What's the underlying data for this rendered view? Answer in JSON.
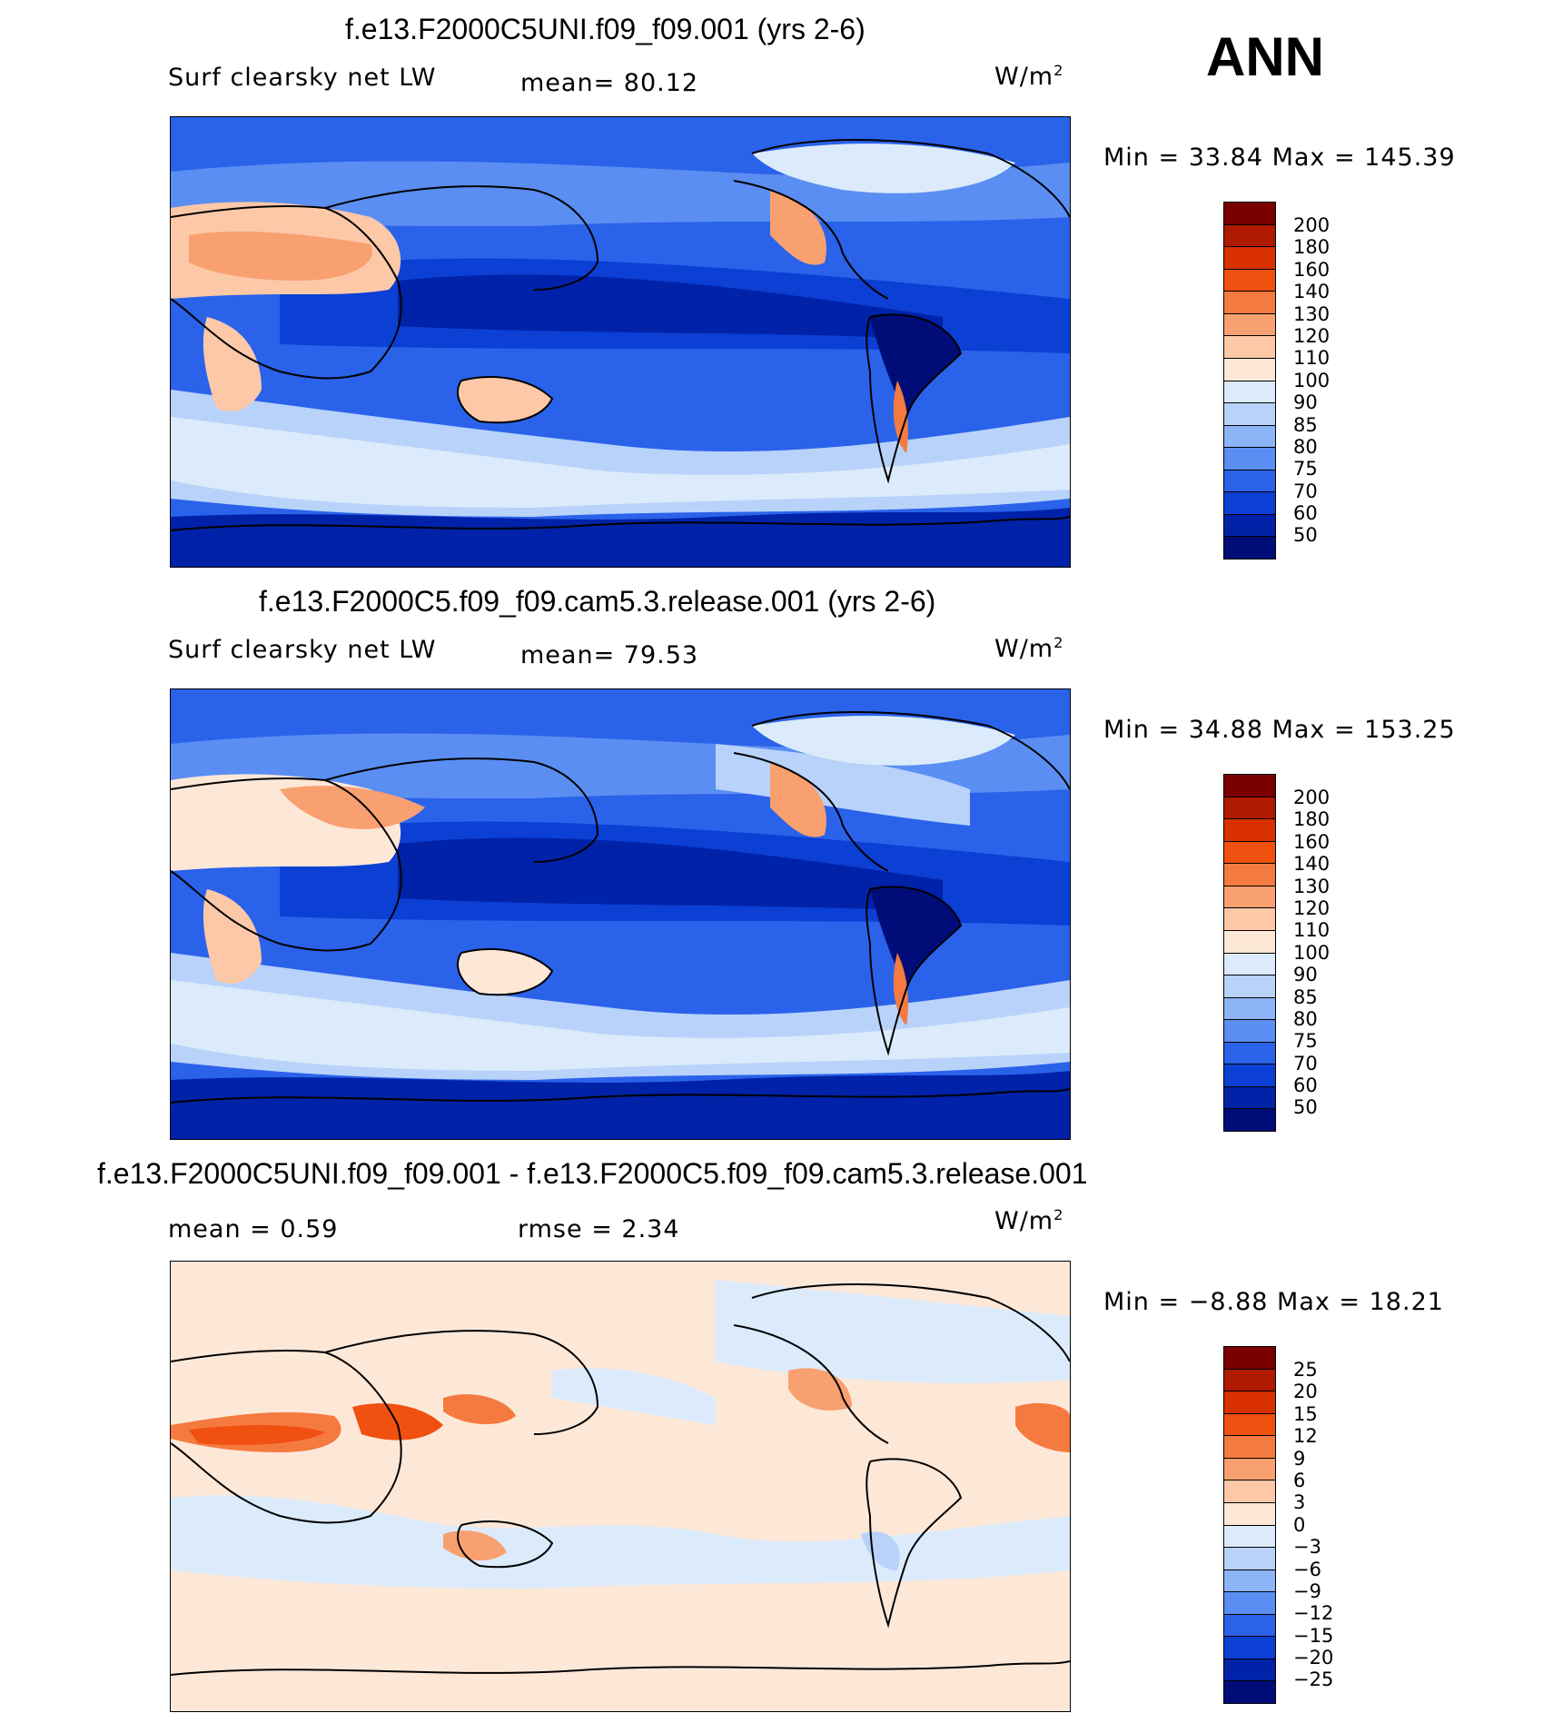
{
  "season": "ANN",
  "panels": [
    {
      "title": "f.e13.F2000C5UNI.f09_f09.001 (yrs 2-6)",
      "variable": "Surf clearsky net LW",
      "stat_text": "mean=   80.12",
      "units": "W/m",
      "units_sup": "2",
      "minmax": "Min =   33.84 Max =  145.39",
      "type": "abs"
    },
    {
      "title": "f.e13.F2000C5.f09_f09.cam5.3.release.001 (yrs 2-6)",
      "variable": "Surf clearsky net LW",
      "stat_text": "mean=   79.53",
      "units": "W/m",
      "units_sup": "2",
      "minmax": "Min =   34.88 Max =  153.25",
      "type": "abs"
    },
    {
      "title": "f.e13.F2000C5UNI.f09_f09.001 - f.e13.F2000C5.f09_f09.cam5.3.release.001",
      "stat_text": "mean =    0.59",
      "stat_text2": "rmse =    2.34",
      "units": "W/m",
      "units_sup": "2",
      "minmax": "Min =  −8.88 Max =   18.21",
      "type": "diff"
    }
  ],
  "colorbars": {
    "abs": {
      "labels": [
        "200",
        "180",
        "160",
        "140",
        "130",
        "120",
        "110",
        "100",
        "90",
        "85",
        "80",
        "75",
        "70",
        "60",
        "50"
      ],
      "colors": [
        "#7a0000",
        "#b01a00",
        "#d83000",
        "#f05010",
        "#f57a40",
        "#f9a070",
        "#fcc8a8",
        "#fde8d8",
        "#dcebfb",
        "#b8d2fa",
        "#8cb4f7",
        "#5a8ef2",
        "#2a62ea",
        "#0c3fd4",
        "#0022a8",
        "#000d78"
      ]
    },
    "diff": {
      "labels": [
        "25",
        "20",
        "15",
        "12",
        "9",
        "6",
        "3",
        "0",
        "−3",
        "−6",
        "−9",
        "−12",
        "−15",
        "−20",
        "−25"
      ],
      "colors": [
        "#7a0000",
        "#b01a00",
        "#d83000",
        "#f05010",
        "#f57a40",
        "#f9a070",
        "#fcc8a8",
        "#fde8d8",
        "#dcebfb",
        "#b8d2fa",
        "#8cb4f7",
        "#5a8ef2",
        "#2a62ea",
        "#0c3fd4",
        "#0022a8",
        "#000d78"
      ]
    }
  }
}
